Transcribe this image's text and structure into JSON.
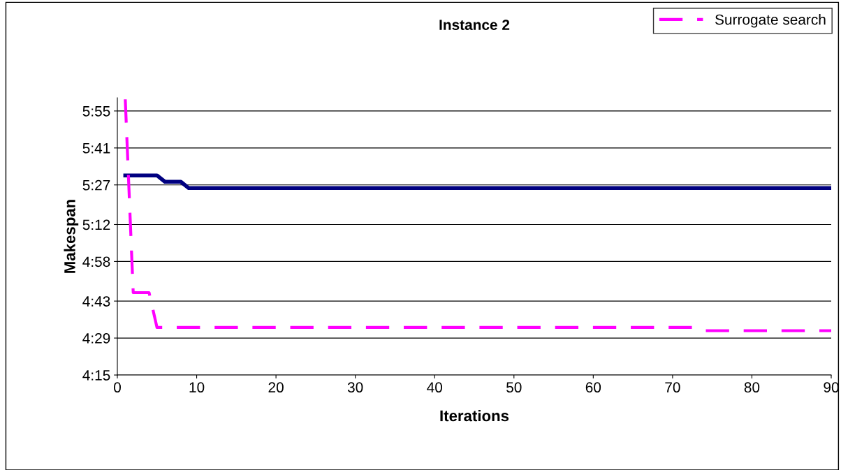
{
  "chart_data": {
    "type": "line",
    "title": "Instance 2",
    "xlabel": "Iterations",
    "ylabel": "Makespan",
    "xlim": [
      0,
      90
    ],
    "xticks": [
      0,
      10,
      20,
      30,
      40,
      50,
      60,
      70,
      80,
      90
    ],
    "ylim": [
      4.25,
      6.0
    ],
    "yticks": [
      {
        "value": 4.25,
        "label": "4:15"
      },
      {
        "value": 4.4833,
        "label": "4:29"
      },
      {
        "value": 4.7167,
        "label": "4:43"
      },
      {
        "value": 4.9667,
        "label": "4:58"
      },
      {
        "value": 5.2,
        "label": "5:12"
      },
      {
        "value": 5.45,
        "label": "5:27"
      },
      {
        "value": 5.6833,
        "label": "5:41"
      },
      {
        "value": 5.9167,
        "label": "5:55"
      }
    ],
    "grid": "y",
    "legend": "top right",
    "marker": "none",
    "series": [
      {
        "color": "#000080",
        "line_style": "solid",
        "x": [
          1,
          5,
          6,
          8,
          9,
          90
        ],
        "values": [
          5.51,
          5.51,
          5.47,
          5.47,
          5.43,
          5.43
        ]
      },
      {
        "name": "Surrogate search",
        "color": "#ff00ff",
        "line_style": "dashed",
        "x": [
          1,
          2,
          3,
          4,
          5,
          73,
          74,
          90
        ],
        "values": [
          5.99,
          4.77,
          4.77,
          4.77,
          4.55,
          4.55,
          4.53,
          4.53
        ]
      }
    ]
  }
}
